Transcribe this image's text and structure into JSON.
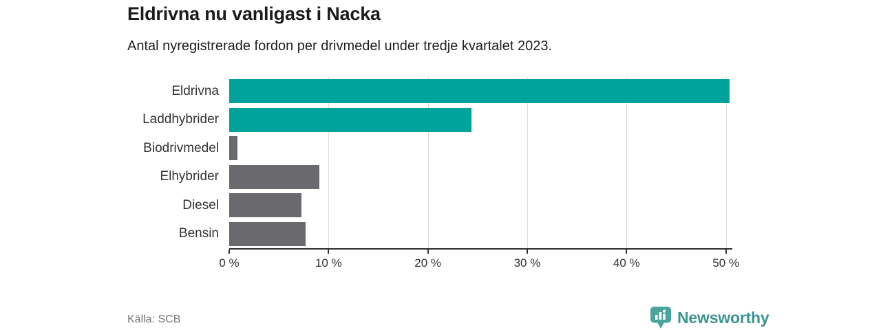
{
  "header": {
    "title": "Eldrivna nu vanligast i Nacka",
    "subtitle": "Antal nyregistrerade fordon per drivmedel under tredje kvartalet 2023."
  },
  "footer": {
    "source": "Källa: SCB",
    "logo_text": "Newsworthy",
    "logo_icon": "bar-chart-pin-icon"
  },
  "colors": {
    "highlight_bar": "#00a39b",
    "default_bar": "#6a6a6e",
    "gridline": "#d9d9d9",
    "axis": "#2f2f2f",
    "logo_teal": "#3d948f",
    "logo_icon_fill": "#4ba39e",
    "title_text": "#1b1b1b",
    "label_text": "#333333",
    "source_text": "#76767b"
  },
  "chart_data": {
    "type": "bar",
    "orientation": "horizontal",
    "title": "Eldrivna nu vanligast i Nacka",
    "subtitle": "Antal nyregistrerade fordon per drivmedel under tredje kvartalet 2023.",
    "categories": [
      "Eldrivna",
      "Laddhybrider",
      "Biodrivmedel",
      "Elhybrider",
      "Diesel",
      "Bensin"
    ],
    "values": [
      50.4,
      24.4,
      0.8,
      9.1,
      7.3,
      7.7
    ],
    "unit": "%",
    "bar_colors": [
      "#00a39b",
      "#00a39b",
      "#6a6a6e",
      "#6a6a6e",
      "#6a6a6e",
      "#6a6a6e"
    ],
    "xlabel": "",
    "ylabel": "",
    "xlim": [
      0,
      50.65
    ],
    "xticks": [
      0,
      10,
      20,
      30,
      40,
      50
    ],
    "xtick_labels": [
      "0 %",
      "10 %",
      "20 %",
      "30 %",
      "40 %",
      "50 %"
    ],
    "grid": "vertical",
    "legend": "none"
  }
}
